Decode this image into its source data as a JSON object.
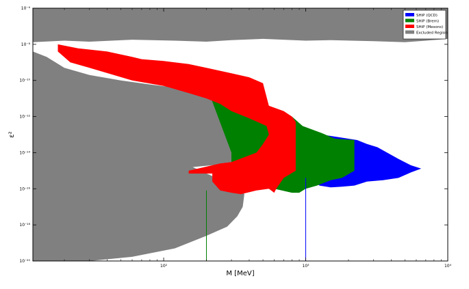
{
  "chart_data": {
    "type": "area",
    "title": "",
    "xlabel": "M [MeV]",
    "ylabel": "ε²",
    "x_scale": "log",
    "y_scale": "log",
    "xlim": [
      12,
      10000
    ],
    "ylim": [
      1e-20,
      1e-06
    ],
    "grid": false,
    "legend_position": "top-right",
    "x_ticks": [
      {
        "value": 100,
        "label": "10²"
      },
      {
        "value": 1000,
        "label": "10³"
      },
      {
        "value": 10000,
        "label": "10⁴"
      }
    ],
    "y_ticks": [
      {
        "value": 1e-06,
        "label": "10⁻⁶"
      },
      {
        "value": 1e-08,
        "label": "10⁻⁸"
      },
      {
        "value": 1e-10,
        "label": "10⁻¹⁰"
      },
      {
        "value": 1e-12,
        "label": "10⁻¹²"
      },
      {
        "value": 1e-14,
        "label": "10⁻¹⁴"
      },
      {
        "value": 1e-16,
        "label": "10⁻¹⁶"
      },
      {
        "value": 1e-18,
        "label": "10⁻¹⁸"
      },
      {
        "value": 1e-20,
        "label": "10⁻²⁰"
      }
    ],
    "series": [
      {
        "name": "Excluded Region",
        "color": "#808080",
        "regions": [
          [
            [
              12,
              1e-06
            ],
            [
              10000,
              1e-06
            ],
            [
              10000,
              2e-08
            ],
            [
              7000,
              1.6e-08
            ],
            [
              5000,
              1.3e-08
            ],
            [
              3000,
              1.5e-08
            ],
            [
              1500,
              1.7e-08
            ],
            [
              1000,
              1.6e-08
            ],
            [
              500,
              2e-08
            ],
            [
              300,
              1.7e-08
            ],
            [
              200,
              1.4e-08
            ],
            [
              120,
              1.6e-08
            ],
            [
              60,
              1.8e-08
            ],
            [
              30,
              1.4e-08
            ],
            [
              20,
              1.6e-08
            ],
            [
              12,
              1.3e-08
            ]
          ],
          [
            [
              12,
              4e-09
            ],
            [
              15,
              2e-09
            ],
            [
              20,
              5e-10
            ],
            [
              30,
              2e-10
            ],
            [
              50,
              1e-10
            ],
            [
              80,
              6e-11
            ],
            [
              120,
              4e-11
            ],
            [
              180,
              1.8e-11
            ],
            [
              250,
              5e-12
            ],
            [
              300,
              2e-12
            ],
            [
              400,
              4e-13
            ],
            [
              480,
              1.1e-13
            ],
            [
              520,
              2.5e-14
            ],
            [
              480,
              6e-15
            ],
            [
              300,
              2.5e-15
            ],
            [
              160,
              1.6e-15
            ],
            [
              220,
              5e-16
            ],
            [
              300,
              1.3e-16
            ],
            [
              350,
              1e-16
            ],
            [
              370,
              5e-17
            ],
            [
              360,
              1e-17
            ],
            [
              330,
              3e-18
            ],
            [
              280,
              8e-19
            ],
            [
              200,
              2.5e-19
            ],
            [
              120,
              5e-20
            ],
            [
              60,
              1.7e-20
            ],
            [
              30,
              1e-20
            ],
            [
              12,
              1e-20
            ]
          ]
        ]
      },
      {
        "name": "SHiP (QCD)",
        "color": "#0000ff",
        "regions": [
          [
            [
              1300,
              1e-13
            ],
            [
              2300,
              5e-14
            ],
            [
              2700,
              3e-14
            ],
            [
              3200,
              2e-14
            ],
            [
              4500,
              4.5e-15
            ],
            [
              5500,
              2e-15
            ],
            [
              6500,
              1.3e-15
            ],
            [
              5500,
              8e-16
            ],
            [
              4500,
              4e-16
            ],
            [
              3500,
              3e-16
            ],
            [
              2700,
              2.5e-16
            ],
            [
              2200,
              1.5e-16
            ],
            [
              1800,
              1.3e-16
            ],
            [
              1500,
              1.2e-16
            ],
            [
              1250,
              1.5e-16
            ],
            [
              1150,
              2.5e-16
            ],
            [
              1300,
              3e-16
            ]
          ]
        ]
      },
      {
        "name": "SHiP (Brem)",
        "color": "#008000",
        "regions": [
          [
            [
              200,
              5e-11
            ],
            [
              300,
              1.5e-11
            ],
            [
              500,
              5e-12
            ],
            [
              600,
              3e-12
            ],
            [
              800,
              1e-12
            ],
            [
              950,
              3e-13
            ],
            [
              1300,
              1.2e-13
            ],
            [
              1600,
              6e-14
            ],
            [
              2200,
              5e-14
            ],
            [
              2200,
              1e-15
            ],
            [
              1800,
              4e-16
            ],
            [
              1500,
              3e-16
            ],
            [
              1200,
              1.5e-16
            ],
            [
              1000,
              1e-16
            ],
            [
              900,
              6e-17
            ],
            [
              800,
              6e-17
            ],
            [
              600,
              1e-16
            ],
            [
              300,
              1e-16
            ],
            [
              300,
              1e-14
            ]
          ]
        ]
      },
      {
        "name": "SHiP (Mesons)",
        "color": "#ff0000",
        "regions": [
          [
            [
              18,
              1e-08
            ],
            [
              25,
              6e-09
            ],
            [
              40,
              4e-09
            ],
            [
              60,
              2e-09
            ],
            [
              70,
              1.5e-09
            ],
            [
              100,
              1.2e-09
            ],
            [
              150,
              8e-10
            ],
            [
              200,
              5e-10
            ],
            [
              300,
              2.5e-10
            ],
            [
              400,
              1.5e-10
            ],
            [
              500,
              7e-11
            ],
            [
              550,
              4e-12
            ],
            [
              700,
              2e-12
            ],
            [
              800,
              1e-12
            ],
            [
              850,
              5e-13
            ],
            [
              850,
              1e-15
            ],
            [
              700,
              4e-16
            ],
            [
              620,
              1e-16
            ],
            [
              600,
              6e-17
            ],
            [
              550,
              1e-16
            ],
            [
              450,
              8e-17
            ],
            [
              350,
              5e-17
            ],
            [
              300,
              6e-17
            ],
            [
              250,
              8e-17
            ],
            [
              220,
              2.5e-16
            ],
            [
              220,
              7e-16
            ],
            [
              150,
              7e-16
            ],
            [
              150,
              1e-15
            ],
            [
              250,
              2.5e-15
            ],
            [
              300,
              3e-15
            ],
            [
              450,
              1e-14
            ],
            [
              500,
              3e-14
            ],
            [
              550,
              1e-13
            ],
            [
              530,
              3e-13
            ],
            [
              400,
              8e-13
            ],
            [
              300,
              2e-12
            ],
            [
              250,
              5e-12
            ],
            [
              200,
              1e-11
            ],
            [
              150,
              2e-11
            ],
            [
              100,
              5e-11
            ],
            [
              60,
              1e-10
            ],
            [
              30,
              5e-10
            ],
            [
              22,
              1e-09
            ],
            [
              18,
              4e-09
            ]
          ]
        ]
      }
    ],
    "vertical_lines": [
      {
        "x": 200,
        "y_top": 8e-17,
        "color": "#008000"
      },
      {
        "x": 1000,
        "y_top": 4e-16,
        "color": "#0000ff"
      }
    ],
    "legend": [
      {
        "name": "SHiP (QCD)",
        "color": "#0000ff"
      },
      {
        "name": "SHiP (Brem)",
        "color": "#008000"
      },
      {
        "name": "SHiP (Mesons)",
        "color": "#ff0000"
      },
      {
        "name": "Excluded Region",
        "color": "#808080"
      }
    ]
  }
}
